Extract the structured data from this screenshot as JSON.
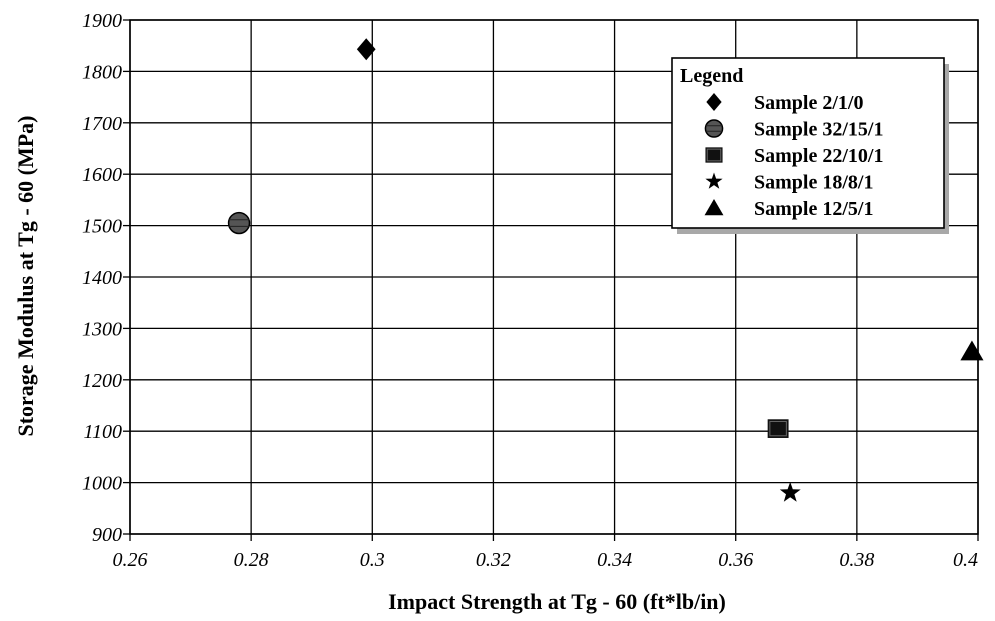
{
  "chart_data": {
    "type": "scatter",
    "xlabel": "Impact Strength at Tg - 60 (ft*lb/in)",
    "ylabel": "Storage Modulus at Tg - 60 (MPa)",
    "xlim": [
      0.26,
      0.4
    ],
    "ylim": [
      900,
      1900
    ],
    "x_ticks": [
      "0.26",
      "0.28",
      "0.3",
      "0.32",
      "0.34",
      "0.36",
      "0.38",
      "0.4"
    ],
    "y_ticks": [
      "900",
      "1000",
      "1100",
      "1200",
      "1300",
      "1400",
      "1500",
      "1600",
      "1700",
      "1800",
      "1900"
    ],
    "grid": true,
    "legend": {
      "title": "Legend",
      "placement": "top-right"
    },
    "series": [
      {
        "name": "Sample 2/1/0",
        "marker": "diamond",
        "points": [
          {
            "x": 0.299,
            "y": 1843
          }
        ]
      },
      {
        "name": "Sample 32/15/1",
        "marker": "circle",
        "points": [
          {
            "x": 0.278,
            "y": 1505
          }
        ]
      },
      {
        "name": "Sample 22/10/1",
        "marker": "square",
        "points": [
          {
            "x": 0.367,
            "y": 1105
          }
        ]
      },
      {
        "name": "Sample 18/8/1",
        "marker": "star",
        "points": [
          {
            "x": 0.369,
            "y": 980
          }
        ]
      },
      {
        "name": "Sample 12/5/1",
        "marker": "triangle",
        "points": [
          {
            "x": 0.399,
            "y": 1255
          }
        ]
      }
    ]
  }
}
